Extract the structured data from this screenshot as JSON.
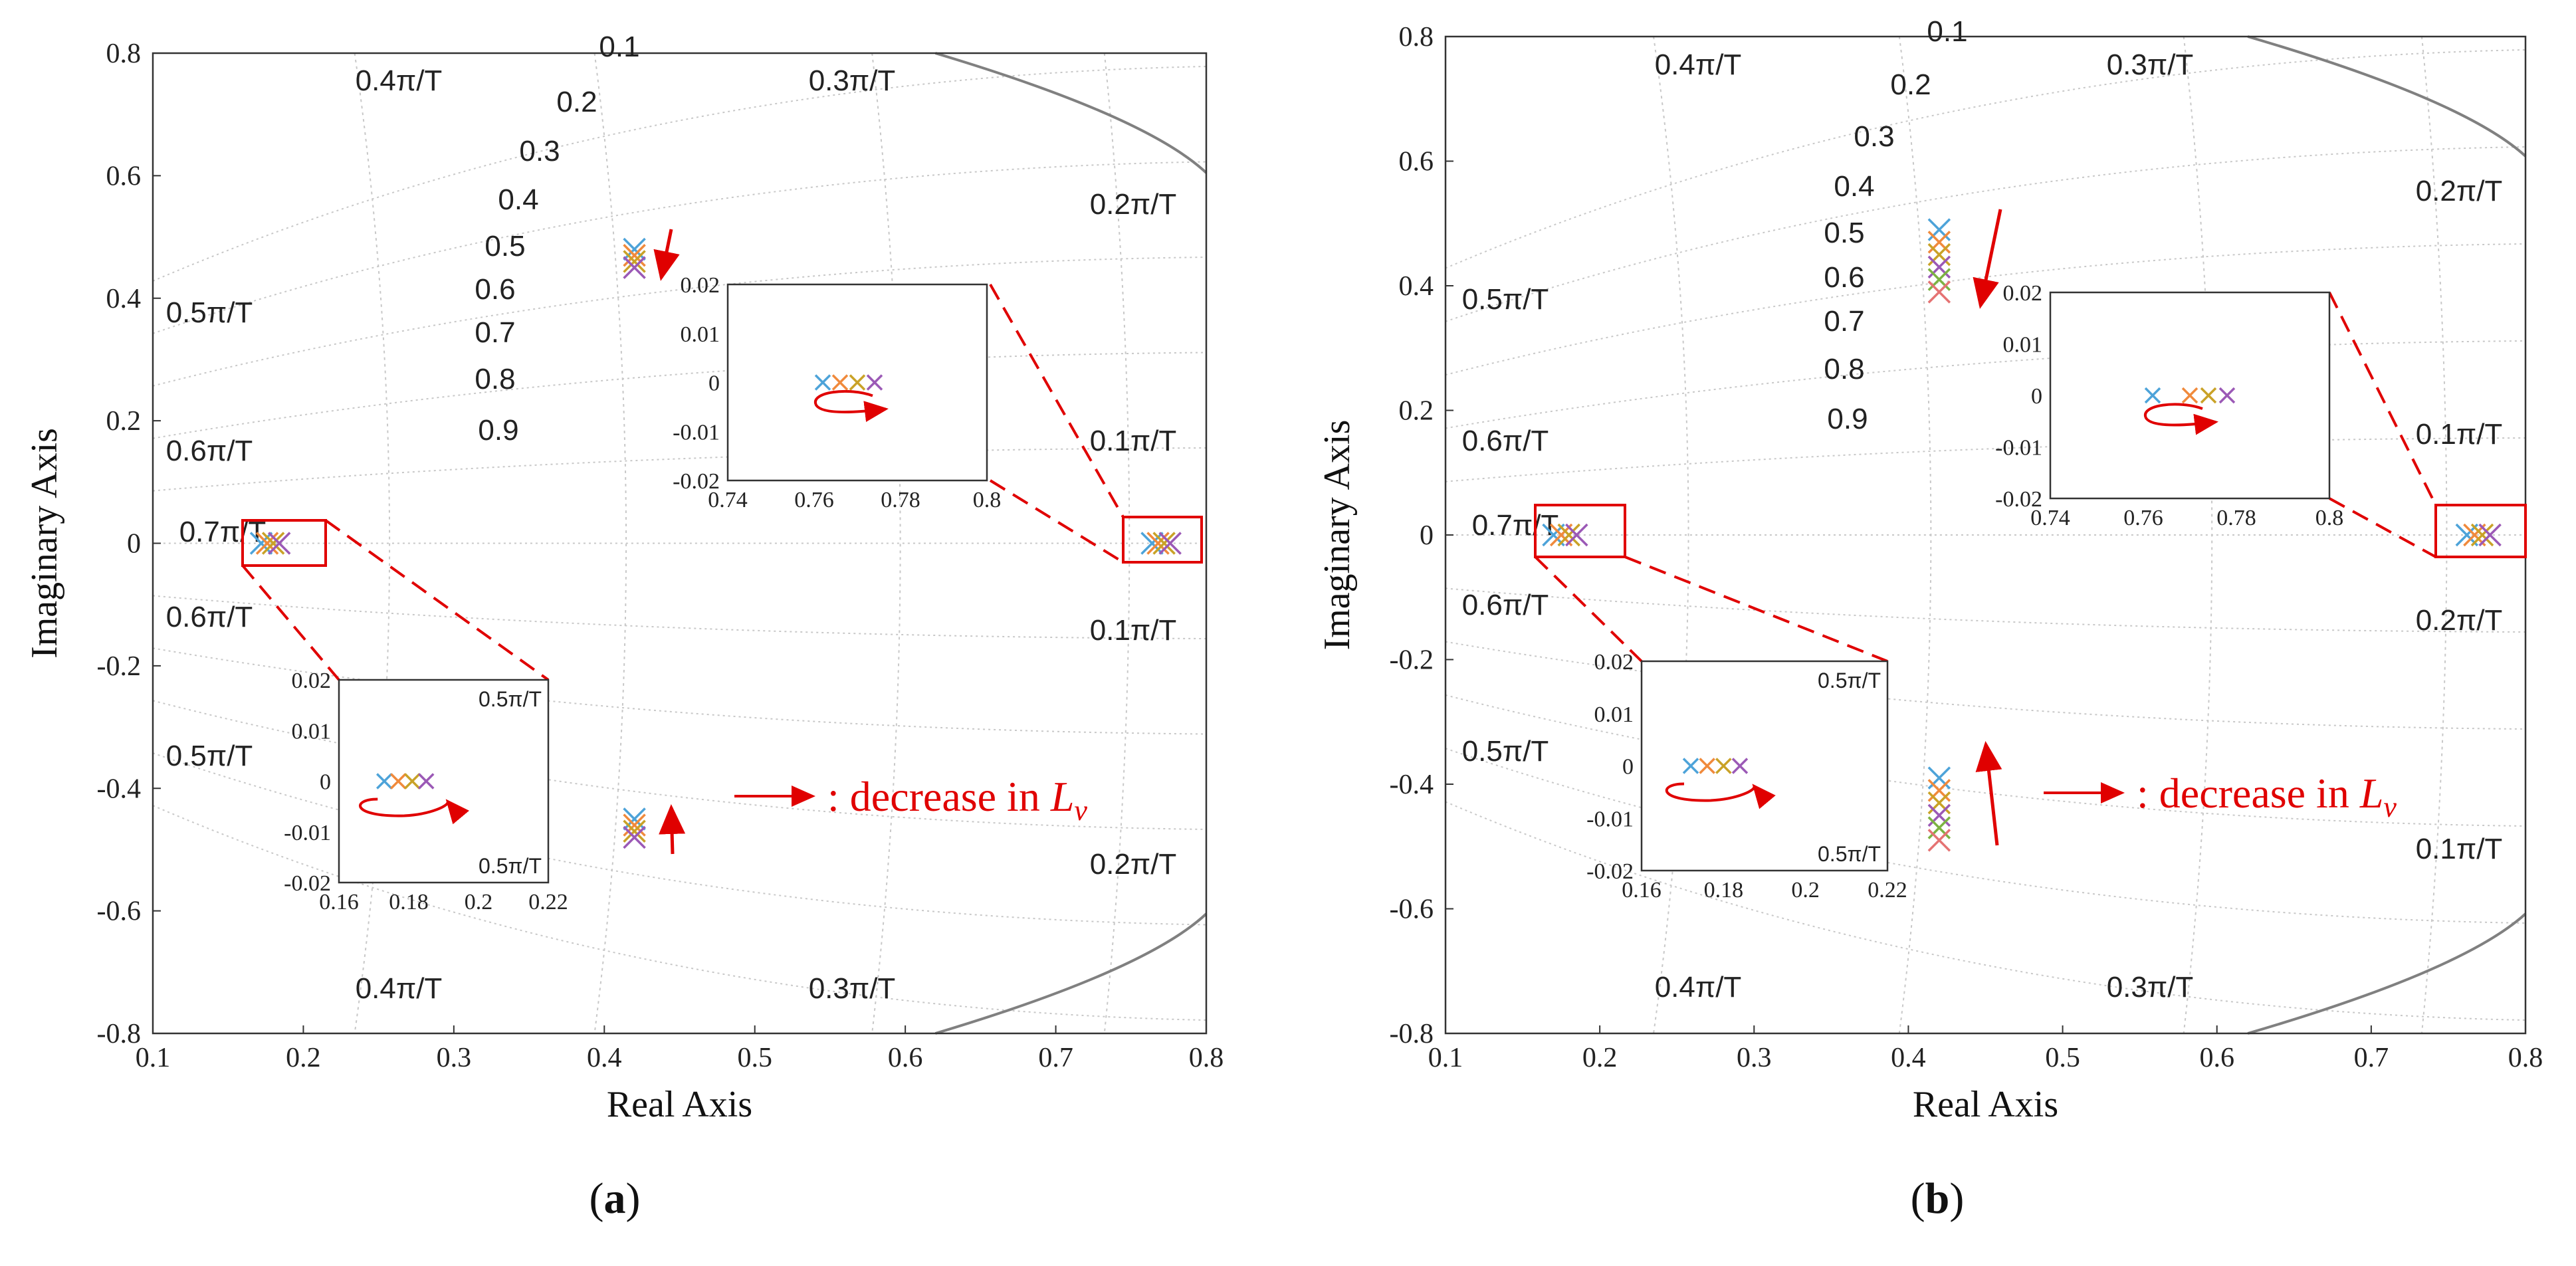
{
  "chart_data": [
    {
      "type": "scatter",
      "panel": "a",
      "caption": "a",
      "xlabel": "Real Axis",
      "ylabel": "Imaginary Axis",
      "xlim": [
        0.1,
        0.8
      ],
      "ylim": [
        -0.8,
        0.8
      ],
      "x_ticks": [
        "0.1",
        "0.2",
        "0.3",
        "0.4",
        "0.5",
        "0.6",
        "0.7",
        "0.8"
      ],
      "y_ticks": [
        "0.8",
        "0.6",
        "0.4",
        "0.2",
        "0",
        "-0.2",
        "-0.4",
        "-0.6",
        "-0.8"
      ],
      "zeta_labels": [
        "0.1",
        "0.2",
        "0.3",
        "0.4",
        "0.5",
        "0.6",
        "0.7",
        "0.8",
        "0.9"
      ],
      "wn_labels": [
        "0.4π/T",
        "0.3π/T",
        "0.2π/T",
        "0.5π/T",
        "0.6π/T",
        "0.7π/T",
        "0.1π/T"
      ],
      "legend": ": decrease in ",
      "legend_var": "L",
      "legend_sub": "v",
      "series": [
        {
          "name": "pole cluster top",
          "points": [
            [
              0.42,
              0.48
            ],
            [
              0.42,
              0.47
            ],
            [
              0.42,
              0.46
            ],
            [
              0.42,
              0.45
            ]
          ]
        },
        {
          "name": "pole cluster bottom",
          "points": [
            [
              0.42,
              -0.45
            ],
            [
              0.42,
              -0.46
            ],
            [
              0.42,
              -0.47
            ],
            [
              0.42,
              -0.48
            ]
          ]
        },
        {
          "name": "pole cluster right",
          "points": [
            [
              0.764,
              0
            ],
            [
              0.768,
              0
            ],
            [
              0.772,
              0
            ],
            [
              0.776,
              0
            ]
          ]
        },
        {
          "name": "pole cluster left",
          "points": [
            [
              0.172,
              0
            ],
            [
              0.176,
              0
            ],
            [
              0.18,
              0
            ],
            [
              0.184,
              0
            ]
          ]
        }
      ],
      "insets": [
        {
          "name": "right",
          "xlim": [
            0.74,
            0.8
          ],
          "ylim": [
            -0.02,
            0.02
          ],
          "x_ticks": [
            "0.74",
            "0.76",
            "0.78",
            "0.8"
          ],
          "y_ticks": [
            "0.02",
            "0.01",
            "0",
            "-0.01",
            "-0.02"
          ],
          "points": [
            0.762,
            0.766,
            0.77,
            0.774
          ],
          "labels": []
        },
        {
          "name": "left",
          "xlim": [
            0.16,
            0.22
          ],
          "ylim": [
            -0.02,
            0.02
          ],
          "x_ticks": [
            "0.16",
            "0.18",
            "0.2",
            "0.22"
          ],
          "y_ticks": [
            "0.02",
            "0.01",
            "0",
            "-0.01",
            "-0.02"
          ],
          "points": [
            0.173,
            0.177,
            0.181,
            0.185
          ],
          "labels": [
            "0.5π/T",
            "0.5π/T"
          ]
        }
      ]
    },
    {
      "type": "scatter",
      "panel": "b",
      "caption": "b",
      "xlabel": "Real Axis",
      "ylabel": "Imaginary Axis",
      "xlim": [
        0.1,
        0.8
      ],
      "ylim": [
        -0.8,
        0.8
      ],
      "x_ticks": [
        "0.1",
        "0.2",
        "0.3",
        "0.4",
        "0.5",
        "0.6",
        "0.7",
        "0.8"
      ],
      "y_ticks": [
        "0.8",
        "0.6",
        "0.4",
        "0.2",
        "0",
        "-0.2",
        "-0.4",
        "-0.6",
        "-0.8"
      ],
      "zeta_labels": [
        "0.1",
        "0.2",
        "0.3",
        "0.4",
        "0.5",
        "0.6",
        "0.7",
        "0.8",
        "0.9"
      ],
      "wn_labels": [
        "0.4π/T",
        "0.3π/T",
        "0.2π/T",
        "0.5π/T",
        "0.6π/T",
        "0.7π/T",
        "0.1π/T"
      ],
      "legend": ": decrease in ",
      "legend_var": "L",
      "legend_sub": "v",
      "series": [
        {
          "name": "pole cluster top",
          "points": [
            [
              0.42,
              0.49
            ],
            [
              0.42,
              0.47
            ],
            [
              0.42,
              0.45
            ],
            [
              0.42,
              0.43
            ],
            [
              0.42,
              0.41
            ],
            [
              0.42,
              0.39
            ]
          ]
        },
        {
          "name": "pole cluster bottom",
          "points": [
            [
              0.42,
              -0.39
            ],
            [
              0.42,
              -0.41
            ],
            [
              0.42,
              -0.43
            ],
            [
              0.42,
              -0.45
            ],
            [
              0.42,
              -0.47
            ],
            [
              0.42,
              -0.49
            ]
          ]
        },
        {
          "name": "pole cluster right",
          "points": [
            [
              0.762,
              0
            ],
            [
              0.767,
              0
            ],
            [
              0.772,
              0
            ],
            [
              0.777,
              0
            ]
          ]
        },
        {
          "name": "pole cluster left",
          "points": [
            [
              0.17,
              0
            ],
            [
              0.175,
              0
            ],
            [
              0.18,
              0
            ],
            [
              0.185,
              0
            ]
          ]
        }
      ],
      "insets": [
        {
          "name": "right",
          "xlim": [
            0.74,
            0.8
          ],
          "ylim": [
            -0.02,
            0.02
          ],
          "x_ticks": [
            "0.74",
            "0.76",
            "0.78",
            "0.8"
          ],
          "y_ticks": [
            "0.02",
            "0.01",
            "0",
            "-0.01",
            "-0.02"
          ],
          "points": [
            0.762,
            0.77,
            0.774,
            0.778
          ],
          "labels": []
        },
        {
          "name": "left",
          "xlim": [
            0.16,
            0.22
          ],
          "ylim": [
            -0.02,
            0.02
          ],
          "x_ticks": [
            "0.16",
            "0.18",
            "0.2",
            "0.22"
          ],
          "y_ticks": [
            "0.02",
            "0.01",
            "0",
            "-0.01",
            "-0.02"
          ],
          "points": [
            0.172,
            0.176,
            0.18,
            0.184
          ],
          "labels": [
            "0.5π/T",
            "0.5π/T"
          ]
        }
      ]
    }
  ],
  "colors": {
    "markers": [
      "#4da3d9",
      "#f08a3c",
      "#c9a227",
      "#9b59b6",
      "#7cb342",
      "#e57373"
    ],
    "accent": "#e00000",
    "grid": "#c8c8c8",
    "boundary": "#808080"
  }
}
